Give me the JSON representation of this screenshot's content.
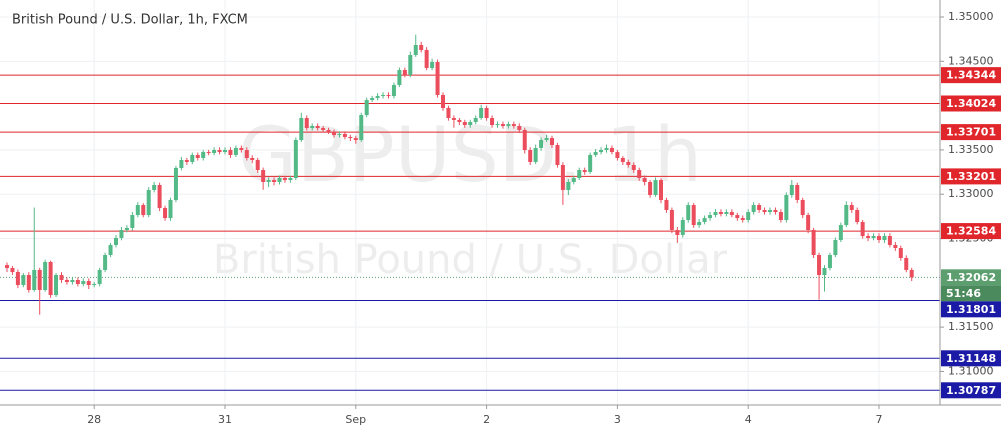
{
  "chart_data": {
    "type": "candlestick",
    "title": "British Pound / U.S. Dollar, 1h, FXCM",
    "watermark": "GBPUSD, 1h",
    "watermark_subtitle": "British Pound / U.S. Dollar",
    "categories": [
      null,
      null,
      null,
      null,
      null,
      null,
      null,
      null,
      null,
      null,
      null,
      null,
      null,
      null,
      null,
      null,
      "28",
      null,
      null,
      null,
      null,
      null,
      null,
      null,
      null,
      null,
      null,
      null,
      null,
      null,
      null,
      null,
      null,
      null,
      null,
      null,
      null,
      null,
      null,
      null,
      "31",
      null,
      null,
      null,
      null,
      null,
      null,
      null,
      null,
      null,
      null,
      null,
      null,
      null,
      null,
      null,
      null,
      null,
      null,
      null,
      null,
      null,
      null,
      null,
      "Sep",
      null,
      null,
      null,
      null,
      null,
      null,
      null,
      null,
      null,
      null,
      null,
      null,
      null,
      null,
      null,
      null,
      null,
      null,
      null,
      null,
      null,
      null,
      null,
      "2",
      null,
      null,
      null,
      null,
      null,
      null,
      null,
      null,
      null,
      null,
      null,
      null,
      null,
      null,
      null,
      null,
      null,
      null,
      null,
      null,
      null,
      null,
      null,
      "3",
      null,
      null,
      null,
      null,
      null,
      null,
      null,
      null,
      null,
      null,
      null,
      null,
      null,
      null,
      null,
      null,
      null,
      null,
      null,
      null,
      null,
      null,
      null,
      "4",
      null,
      null,
      null,
      null,
      null,
      null,
      null,
      null,
      null,
      null,
      null,
      null,
      null,
      null,
      null,
      null,
      null,
      null,
      null,
      null,
      null,
      null,
      null,
      "7",
      null,
      null,
      null,
      null,
      null,
      null
    ],
    "ohlc": [
      [
        1.322,
        1.3223,
        1.3212,
        1.32167
      ],
      [
        1.32167,
        1.3219,
        1.3209,
        1.32122
      ],
      [
        1.32122,
        1.3215,
        1.3194,
        1.31975
      ],
      [
        1.31975,
        1.3211,
        1.3195,
        1.32088
      ],
      [
        1.32088,
        1.3212,
        1.3189,
        1.31919
      ],
      [
        1.31919,
        1.3285,
        1.319,
        1.32145
      ],
      [
        1.32145,
        1.3217,
        1.3164,
        1.31919
      ],
      [
        1.31919,
        1.3226,
        1.319,
        1.32235
      ],
      [
        1.32235,
        1.3225,
        1.3183,
        1.31862
      ],
      [
        1.31862,
        1.3211,
        1.3184,
        1.32088
      ],
      [
        1.32088,
        1.3212,
        1.32,
        1.32032
      ],
      [
        1.32032,
        1.3206,
        1.3198,
        1.32009
      ],
      [
        1.32009,
        1.3206,
        1.3198,
        1.32032
      ],
      [
        1.32032,
        1.3206,
        1.3196,
        1.31987
      ],
      [
        1.31987,
        1.3205,
        1.3196,
        1.3202
      ],
      [
        1.3202,
        1.3205,
        1.3193,
        1.31975
      ],
      [
        1.31975,
        1.3201,
        1.3195,
        1.31987
      ],
      [
        1.31987,
        1.3217,
        1.3196,
        1.32145
      ],
      [
        1.32145,
        1.3234,
        1.3212,
        1.32314
      ],
      [
        1.32314,
        1.3245,
        1.3229,
        1.32427
      ],
      [
        1.32427,
        1.3254,
        1.324,
        1.32506
      ],
      [
        1.32506,
        1.3263,
        1.3248,
        1.32596
      ],
      [
        1.32596,
        1.3265,
        1.3257,
        1.32619
      ],
      [
        1.32619,
        1.328,
        1.3259,
        1.32765
      ],
      [
        1.32765,
        1.3291,
        1.3274,
        1.32878
      ],
      [
        1.32878,
        1.329,
        1.3274,
        1.32765
      ],
      [
        1.32765,
        1.3308,
        1.3274,
        1.33048
      ],
      [
        1.33048,
        1.3314,
        1.3302,
        1.33104
      ],
      [
        1.33104,
        1.3313,
        1.3281,
        1.32844
      ],
      [
        1.32844,
        1.3287,
        1.327,
        1.32731
      ],
      [
        1.32731,
        1.3296,
        1.327,
        1.32935
      ],
      [
        1.32935,
        1.3332,
        1.3291,
        1.33296
      ],
      [
        1.33296,
        1.3342,
        1.3327,
        1.33386
      ],
      [
        1.33386,
        1.3341,
        1.3333,
        1.33364
      ],
      [
        1.33364,
        1.3347,
        1.3334,
        1.33443
      ],
      [
        1.33443,
        1.3347,
        1.3338,
        1.33409
      ],
      [
        1.33409,
        1.335,
        1.3338,
        1.33476
      ],
      [
        1.33476,
        1.335,
        1.3344,
        1.33465
      ],
      [
        1.33465,
        1.3353,
        1.3344,
        1.33499
      ],
      [
        1.33499,
        1.3353,
        1.3345,
        1.33476
      ],
      [
        1.33476,
        1.3353,
        1.3345,
        1.33499
      ],
      [
        1.33499,
        1.3353,
        1.3341,
        1.33443
      ],
      [
        1.33443,
        1.3355,
        1.3342,
        1.33522
      ],
      [
        1.33522,
        1.3355,
        1.3347,
        1.33499
      ],
      [
        1.33499,
        1.3353,
        1.3338,
        1.33409
      ],
      [
        1.33409,
        1.3344,
        1.3335,
        1.33386
      ],
      [
        1.33386,
        1.3341,
        1.3324,
        1.33273
      ],
      [
        1.33273,
        1.333,
        1.3305,
        1.33138
      ],
      [
        1.33138,
        1.3319,
        1.3308,
        1.3316
      ],
      [
        1.3316,
        1.3319,
        1.331,
        1.33138
      ],
      [
        1.33138,
        1.3321,
        1.3311,
        1.33183
      ],
      [
        1.33183,
        1.3321,
        1.3313,
        1.3316
      ],
      [
        1.3316,
        1.3321,
        1.3313,
        1.33183
      ],
      [
        1.33183,
        1.3364,
        1.3316,
        1.33612
      ],
      [
        1.33612,
        1.3392,
        1.3359,
        1.3386
      ],
      [
        1.3386,
        1.3389,
        1.3372,
        1.33747
      ],
      [
        1.33747,
        1.338,
        1.3372,
        1.3377
      ],
      [
        1.3377,
        1.338,
        1.3372,
        1.33747
      ],
      [
        1.33747,
        1.3377,
        1.337,
        1.33725
      ],
      [
        1.33725,
        1.3375,
        1.3368,
        1.33702
      ],
      [
        1.33702,
        1.3373,
        1.3364,
        1.33668
      ],
      [
        1.33668,
        1.3371,
        1.3364,
        1.3368
      ],
      [
        1.3368,
        1.3371,
        1.3362,
        1.33646
      ],
      [
        1.33646,
        1.3367,
        1.336,
        1.33634
      ],
      [
        1.33634,
        1.3366,
        1.3357,
        1.33612
      ],
      [
        1.33612,
        1.3392,
        1.3359,
        1.33894
      ],
      [
        1.33894,
        1.3409,
        1.3387,
        1.34063
      ],
      [
        1.34063,
        1.3411,
        1.3404,
        1.34086
      ],
      [
        1.34086,
        1.3414,
        1.3406,
        1.34108
      ],
      [
        1.34108,
        1.3415,
        1.3408,
        1.3412
      ],
      [
        1.3412,
        1.3415,
        1.3408,
        1.34108
      ],
      [
        1.34108,
        1.3426,
        1.3408,
        1.34233
      ],
      [
        1.34233,
        1.3443,
        1.3421,
        1.34402
      ],
      [
        1.34402,
        1.3443,
        1.3432,
        1.34346
      ],
      [
        1.34346,
        1.3461,
        1.3432,
        1.34571
      ],
      [
        1.34571,
        1.348,
        1.3455,
        1.34684
      ],
      [
        1.34684,
        1.3472,
        1.346,
        1.34628
      ],
      [
        1.34628,
        1.3466,
        1.344,
        1.34425
      ],
      [
        1.34425,
        1.3453,
        1.344,
        1.34492
      ],
      [
        1.34492,
        1.3452,
        1.3409,
        1.3412
      ],
      [
        1.3412,
        1.3415,
        1.3394,
        1.33973
      ],
      [
        1.33973,
        1.34,
        1.3383,
        1.3386
      ],
      [
        1.3386,
        1.3389,
        1.3375,
        1.33838
      ],
      [
        1.33838,
        1.3386,
        1.3378,
        1.33815
      ],
      [
        1.33815,
        1.3384,
        1.3375,
        1.33781
      ],
      [
        1.33781,
        1.3384,
        1.3375,
        1.33815
      ],
      [
        1.33815,
        1.3389,
        1.3379,
        1.3386
      ],
      [
        1.3386,
        1.3401,
        1.3384,
        1.33973
      ],
      [
        1.33973,
        1.34,
        1.3383,
        1.3386
      ],
      [
        1.3386,
        1.3389,
        1.3375,
        1.33781
      ],
      [
        1.33781,
        1.3382,
        1.3375,
        1.33792
      ],
      [
        1.33792,
        1.3382,
        1.3374,
        1.3377
      ],
      [
        1.3377,
        1.3382,
        1.3374,
        1.33792
      ],
      [
        1.33792,
        1.3382,
        1.3374,
        1.3377
      ],
      [
        1.3377,
        1.338,
        1.3369,
        1.33725
      ],
      [
        1.33725,
        1.3375,
        1.3346,
        1.33499
      ],
      [
        1.33499,
        1.3353,
        1.3333,
        1.33364
      ],
      [
        1.33364,
        1.3356,
        1.3334,
        1.33522
      ],
      [
        1.33522,
        1.3364,
        1.3349,
        1.33612
      ],
      [
        1.33612,
        1.3367,
        1.3359,
        1.33634
      ],
      [
        1.33634,
        1.3366,
        1.3352,
        1.33555
      ],
      [
        1.33555,
        1.3358,
        1.333,
        1.3333
      ],
      [
        1.3333,
        1.3336,
        1.3288,
        1.33048
      ],
      [
        1.33048,
        1.3317,
        1.3299,
        1.33138
      ],
      [
        1.33138,
        1.3321,
        1.3311,
        1.33183
      ],
      [
        1.33183,
        1.333,
        1.3316,
        1.33273
      ],
      [
        1.33273,
        1.333,
        1.3322,
        1.33251
      ],
      [
        1.33251,
        1.3347,
        1.3323,
        1.33443
      ],
      [
        1.33443,
        1.3351,
        1.3342,
        1.33476
      ],
      [
        1.33476,
        1.3353,
        1.3345,
        1.33499
      ],
      [
        1.33499,
        1.3356,
        1.3347,
        1.33522
      ],
      [
        1.33522,
        1.3355,
        1.3345,
        1.33476
      ],
      [
        1.33476,
        1.335,
        1.3338,
        1.33409
      ],
      [
        1.33409,
        1.3343,
        1.3333,
        1.33364
      ],
      [
        1.33364,
        1.3339,
        1.333,
        1.3333
      ],
      [
        1.3333,
        1.3336,
        1.3324,
        1.33273
      ],
      [
        1.33273,
        1.333,
        1.3315,
        1.33183
      ],
      [
        1.33183,
        1.3321,
        1.331,
        1.33138
      ],
      [
        1.33138,
        1.3316,
        1.3296,
        1.32991
      ],
      [
        1.32991,
        1.3319,
        1.3297,
        1.3316
      ],
      [
        1.3316,
        1.3318,
        1.329,
        1.32935
      ],
      [
        1.32935,
        1.3296,
        1.3279,
        1.32822
      ],
      [
        1.32822,
        1.3285,
        1.3256,
        1.32596
      ],
      [
        1.32596,
        1.3263,
        1.3245,
        1.3254
      ],
      [
        1.3254,
        1.3274,
        1.3251,
        1.32709
      ],
      [
        1.32709,
        1.3291,
        1.3268,
        1.32878
      ],
      [
        1.32878,
        1.329,
        1.3262,
        1.32652
      ],
      [
        1.32652,
        1.3272,
        1.3262,
        1.32686
      ],
      [
        1.32686,
        1.3276,
        1.3266,
        1.32731
      ],
      [
        1.32731,
        1.328,
        1.327,
        1.32765
      ],
      [
        1.32765,
        1.3283,
        1.3274,
        1.32799
      ],
      [
        1.32799,
        1.3283,
        1.3275,
        1.32777
      ],
      [
        1.32777,
        1.3283,
        1.3275,
        1.32799
      ],
      [
        1.32799,
        1.3283,
        1.3274,
        1.32765
      ],
      [
        1.32765,
        1.3279,
        1.327,
        1.32731
      ],
      [
        1.32731,
        1.3276,
        1.3268,
        1.32709
      ],
      [
        1.32709,
        1.3283,
        1.3268,
        1.32799
      ],
      [
        1.32799,
        1.3291,
        1.3277,
        1.32878
      ],
      [
        1.32878,
        1.329,
        1.3279,
        1.32822
      ],
      [
        1.32822,
        1.3285,
        1.3277,
        1.32799
      ],
      [
        1.32799,
        1.3285,
        1.3277,
        1.32822
      ],
      [
        1.32822,
        1.3285,
        1.3277,
        1.32799
      ],
      [
        1.32799,
        1.3283,
        1.3268,
        1.32709
      ],
      [
        1.32709,
        1.3302,
        1.3268,
        1.32991
      ],
      [
        1.32991,
        1.3316,
        1.3296,
        1.33104
      ],
      [
        1.33104,
        1.3313,
        1.329,
        1.32935
      ],
      [
        1.32935,
        1.3296,
        1.3273,
        1.32765
      ],
      [
        1.32765,
        1.3279,
        1.3256,
        1.32596
      ],
      [
        1.32596,
        1.3262,
        1.3228,
        1.32314
      ],
      [
        1.32314,
        1.3234,
        1.3181,
        1.32088
      ],
      [
        1.32088,
        1.322,
        1.319,
        1.32167
      ],
      [
        1.32167,
        1.3234,
        1.3214,
        1.32314
      ],
      [
        1.32314,
        1.3251,
        1.3229,
        1.32483
      ],
      [
        1.32483,
        1.3268,
        1.3246,
        1.32652
      ],
      [
        1.32652,
        1.3292,
        1.3263,
        1.32878
      ],
      [
        1.32878,
        1.3291,
        1.3279,
        1.32822
      ],
      [
        1.32822,
        1.3285,
        1.3266,
        1.32686
      ],
      [
        1.32686,
        1.3271,
        1.325,
        1.32528
      ],
      [
        1.32528,
        1.3256,
        1.3247,
        1.32506
      ],
      [
        1.32506,
        1.3256,
        1.3248,
        1.32528
      ],
      [
        1.32528,
        1.3256,
        1.3245,
        1.32483
      ],
      [
        1.32483,
        1.3256,
        1.3245,
        1.32528
      ],
      [
        1.32528,
        1.3256,
        1.324,
        1.32427
      ],
      [
        1.32427,
        1.3246,
        1.3236,
        1.32393
      ],
      [
        1.32393,
        1.3242,
        1.3225,
        1.3228
      ],
      [
        1.3228,
        1.3231,
        1.3212,
        1.32145
      ],
      [
        1.32145,
        1.3217,
        1.3202,
        1.32062
      ]
    ],
    "up_color": "#53b987",
    "down_color": "#eb4d5c",
    "ylim": [
      1.30621,
      1.35192
    ],
    "yticks": [
      {
        "value": 1.35,
        "label": "1.35000"
      },
      {
        "value": 1.345,
        "label": "1.34500"
      },
      {
        "value": 1.335,
        "label": "1.33500"
      },
      {
        "value": 1.33,
        "label": "1.33000"
      },
      {
        "value": 1.325,
        "label": "1.32500"
      },
      {
        "value": 1.315,
        "label": "1.31500"
      },
      {
        "value": 1.31,
        "label": "1.31000"
      }
    ],
    "grid": true,
    "levels": [
      {
        "value": 1.34344,
        "color": "#e0262b"
      },
      {
        "value": 1.34024,
        "color": "#e0262b"
      },
      {
        "value": 1.33701,
        "color": "#e0262b"
      },
      {
        "value": 1.33201,
        "color": "#e0262b"
      },
      {
        "value": 1.32584,
        "color": "#e0262b"
      },
      {
        "value": 1.31801,
        "color": "#1a1aa6"
      },
      {
        "value": 1.31148,
        "color": "#1a1aa6"
      },
      {
        "value": 1.30787,
        "color": "#1a1aa6"
      }
    ],
    "last_price": 1.32062,
    "last_price_color": "#5c9e6e",
    "countdown": "51:46"
  }
}
